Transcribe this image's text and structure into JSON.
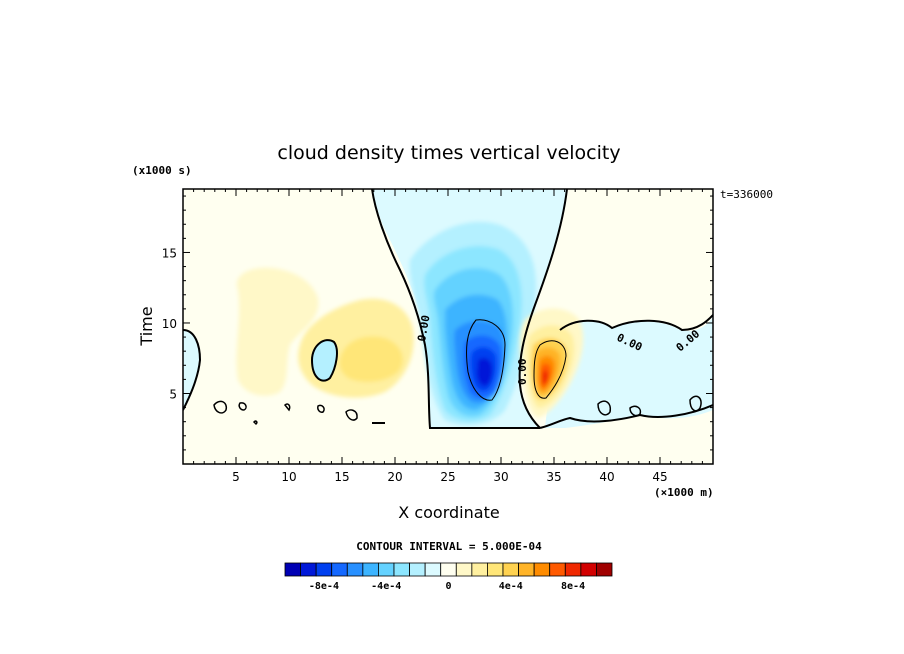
{
  "chart_data": {
    "type": "heatmap",
    "title": "cloud density times vertical velocity",
    "xlabel": "X coordinate",
    "ylabel": "Time",
    "x_units": "(×1000 m)",
    "y_units": "(x1000 s)",
    "timestamp": "t=336000",
    "xlim": [
      0,
      50
    ],
    "ylim": [
      0,
      19.5
    ],
    "x_ticks": [
      5,
      10,
      15,
      20,
      25,
      30,
      35,
      40,
      45
    ],
    "y_ticks": [
      5,
      10,
      15
    ],
    "contour_interval_text": "CONTOUR INTERVAL = 5.000E-04",
    "contour_labels": [
      "0.00",
      "0.00",
      "0.00",
      "0.00"
    ],
    "colorbar": {
      "colors": [
        "#0000b4",
        "#0018d8",
        "#0040f0",
        "#1468ff",
        "#2890ff",
        "#3cb4ff",
        "#64d2ff",
        "#8ce6ff",
        "#b4f0ff",
        "#dcfaff",
        "#fffff0",
        "#fff8c8",
        "#fff0a0",
        "#ffe678",
        "#ffd250",
        "#ffb428",
        "#ff8c00",
        "#ff5a00",
        "#f02800",
        "#d20000",
        "#a00000"
      ],
      "tick_labels": [
        "-8e-4",
        "-4e-4",
        "0",
        "4e-4",
        "8e-4"
      ],
      "tick_values": [
        -0.0008,
        -0.0004,
        0,
        0.0004,
        0.0008
      ]
    },
    "features": [
      {
        "name": "negative-core",
        "x": 29,
        "y": 7.5,
        "peak": -0.0009
      },
      {
        "name": "positive-core",
        "x": 34,
        "y": 6.5,
        "peak": 0.0009
      },
      {
        "name": "weak-positive-left",
        "x": 19,
        "y": 8.5,
        "peak": 0.0003
      },
      {
        "name": "weak-positive-far-left",
        "x": 6,
        "y": 10.5,
        "peak": 0.0002
      }
    ]
  }
}
